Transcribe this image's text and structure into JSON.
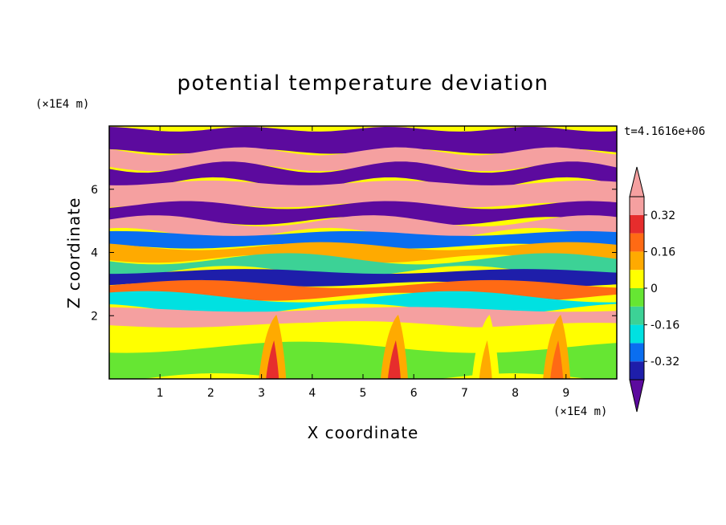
{
  "chart_data": {
    "type": "heatmap",
    "title": "potential temperature deviation",
    "xlabel": "X coordinate",
    "ylabel": "Z coordinate",
    "x_unit": "(×1E4 m)",
    "y_unit": "(×1E4 m)",
    "time_label": "t=4.1616e+06",
    "xlim": [
      0,
      10
    ],
    "ylim": [
      0,
      8
    ],
    "x_ticks": [
      "1",
      "2",
      "3",
      "4",
      "5",
      "6",
      "7",
      "8",
      "9"
    ],
    "y_ticks": [
      "2",
      "4",
      "6"
    ],
    "colorbar": {
      "labels": [
        "0.32",
        "0.16",
        "0",
        "-0.16",
        "-0.32"
      ],
      "label_values": [
        0.32,
        0.16,
        0,
        -0.16,
        -0.32
      ],
      "levels": [
        -0.4,
        -0.32,
        -0.24,
        -0.16,
        -0.08,
        0,
        0.08,
        0.16,
        0.24,
        0.32,
        0.4
      ],
      "colors": [
        "#5c0a9e",
        "#1e1eaa",
        "#0a6ef0",
        "#00e1e1",
        "#3cd296",
        "#66e633",
        "#ffff00",
        "#ffaa00",
        "#ff6a14",
        "#e62d2d",
        "#f5a0a0"
      ],
      "under_color": "#5c0a9e",
      "over_color": "#f5a0a0"
    },
    "bands": [
      {
        "z": [
          7.2,
          7.9
        ],
        "value": -0.45
      },
      {
        "z": [
          6.7,
          7.2
        ],
        "value": 0.45
      },
      {
        "z": [
          6.2,
          6.7
        ],
        "value": -0.45
      },
      {
        "z": [
          5.5,
          6.2
        ],
        "value": 0.45
      },
      {
        "z": [
          5.0,
          5.5
        ],
        "value": -0.45
      },
      {
        "z": [
          4.6,
          5.0
        ],
        "value": 0.45
      },
      {
        "z": [
          4.2,
          4.6
        ],
        "value": -0.3
      },
      {
        "z": [
          3.8,
          4.2
        ],
        "value": 0.1
      },
      {
        "z": [
          3.4,
          3.8
        ],
        "value": -0.1
      },
      {
        "z": [
          3.0,
          3.4
        ],
        "value": -0.35
      },
      {
        "z": [
          2.6,
          3.0
        ],
        "value": 0.2
      },
      {
        "z": [
          2.2,
          2.6
        ],
        "value": -0.2
      },
      {
        "z": [
          1.7,
          2.2
        ],
        "value": 0.35
      },
      {
        "z": [
          1.0,
          1.7
        ],
        "value": 0.05
      },
      {
        "z": [
          0.0,
          1.0
        ],
        "value": -0.05
      }
    ],
    "plumes": [
      {
        "x": 3.2,
        "value": 0.3
      },
      {
        "x": 5.6,
        "value": 0.3
      },
      {
        "x": 7.4,
        "value": 0.15
      },
      {
        "x": 8.8,
        "value": 0.2
      }
    ]
  }
}
